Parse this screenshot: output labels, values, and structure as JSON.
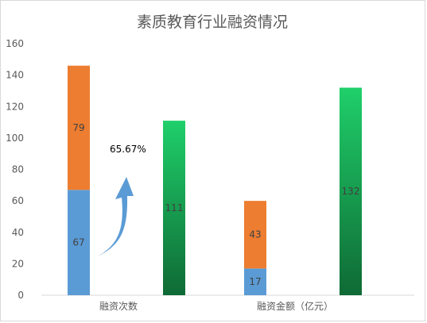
{
  "chart_data": {
    "type": "bar",
    "title": "素质教育行业融资情况",
    "xlabel": "",
    "ylabel": "",
    "ylim": [
      0,
      160
    ],
    "yticks": [
      0,
      20,
      40,
      60,
      80,
      100,
      120,
      140,
      160
    ],
    "grid": false,
    "legend": "none",
    "categories": [
      "融资次数",
      "融资金额（亿元）"
    ],
    "series": [
      {
        "values": [
          67,
          17
        ],
        "color": "#5b9bd5",
        "stack": "left"
      },
      {
        "values": [
          79,
          43
        ],
        "color": "#ed7d31",
        "stack": "left"
      },
      {
        "values": [
          111,
          132
        ],
        "color_top": "#1fcf6a",
        "color_bottom": "#0f6a35",
        "stack": "right"
      }
    ],
    "annotation": {
      "text": "65.67%",
      "icon": "curved-up-arrow-icon",
      "color": "#5b9bd5"
    }
  }
}
